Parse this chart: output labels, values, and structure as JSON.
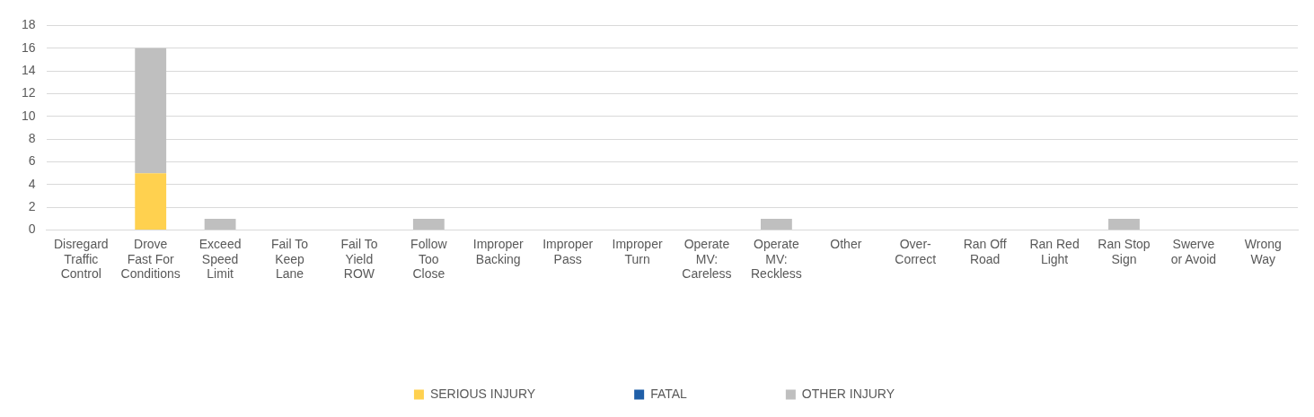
{
  "chart_data": {
    "type": "bar",
    "stacked": true,
    "categories": [
      "Disregard Traffic Control",
      "Drove Fast For Conditions",
      "Exceed Speed Limit",
      "Fail To Keep Lane",
      "Fail To Yield ROW",
      "Follow Too Close",
      "Improper Backing",
      "Improper Pass",
      "Improper Turn",
      "Operate MV: Careless",
      "Operate MV: Reckless",
      "Other",
      "Over-Correct",
      "Ran Off Road",
      "Ran Red Light",
      "Ran Stop Sign",
      "Swerve or Avoid",
      "Wrong Way"
    ],
    "series": [
      {
        "name": "SERIOUS INJURY",
        "color": "#ffd14f",
        "values": [
          0,
          5,
          0,
          0,
          0,
          0,
          0,
          0,
          0,
          0,
          0,
          0,
          0,
          0,
          0,
          0,
          0,
          0
        ]
      },
      {
        "name": "FATAL",
        "color": "#1f5fa8",
        "values": [
          0,
          0,
          0,
          0,
          0,
          0,
          0,
          0,
          0,
          0,
          0,
          0,
          0,
          0,
          0,
          0,
          0,
          0
        ]
      },
      {
        "name": "OTHER INJURY",
        "color": "#bfbfbf",
        "values": [
          0,
          11,
          1,
          0,
          0,
          1,
          0,
          0,
          0,
          0,
          1,
          0,
          0,
          0,
          0,
          1,
          0,
          0
        ]
      }
    ],
    "ylim": [
      0,
      18
    ],
    "yticks": [
      0,
      2,
      4,
      6,
      8,
      10,
      12,
      14,
      16,
      18
    ],
    "grid": "y",
    "legend": "bottom"
  }
}
